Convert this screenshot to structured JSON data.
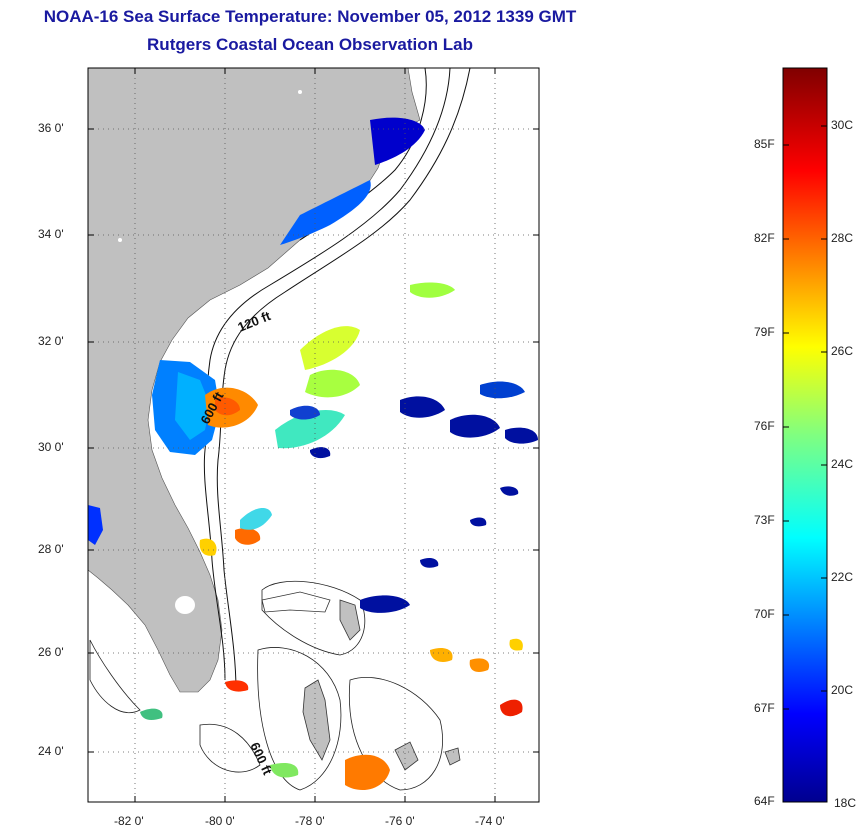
{
  "header": {
    "title": "NOAA-16 Sea Surface Temperature:  November 05, 2012 1339 GMT",
    "subtitle": "Rutgers Coastal Ocean Observation Lab"
  },
  "map": {
    "lat_labels": [
      "36 0'",
      "34 0'",
      "32 0'",
      "30 0'",
      "28 0'",
      "26 0'",
      "24 0'"
    ],
    "lon_labels": [
      "-82 0'",
      "-80 0'",
      "-78 0'",
      "-76 0'",
      "-74 0'"
    ],
    "lat_range": [
      23,
      37.2
    ],
    "lon_range": [
      -83,
      -73
    ],
    "isobath_labels": [
      "120 ft",
      "600 ft",
      "600 ft"
    ],
    "land_color": "#c0c0c0",
    "grid": "dotted"
  },
  "colorbar": {
    "fahrenheit_labels": [
      "85F",
      "82F",
      "79F",
      "76F",
      "73F",
      "70F",
      "67F",
      "64F"
    ],
    "celsius_labels": [
      "30C",
      "28C",
      "26C",
      "24C",
      "22C",
      "20C",
      "18C"
    ],
    "colormap": "jet",
    "range_f": [
      64,
      87.5
    ]
  }
}
